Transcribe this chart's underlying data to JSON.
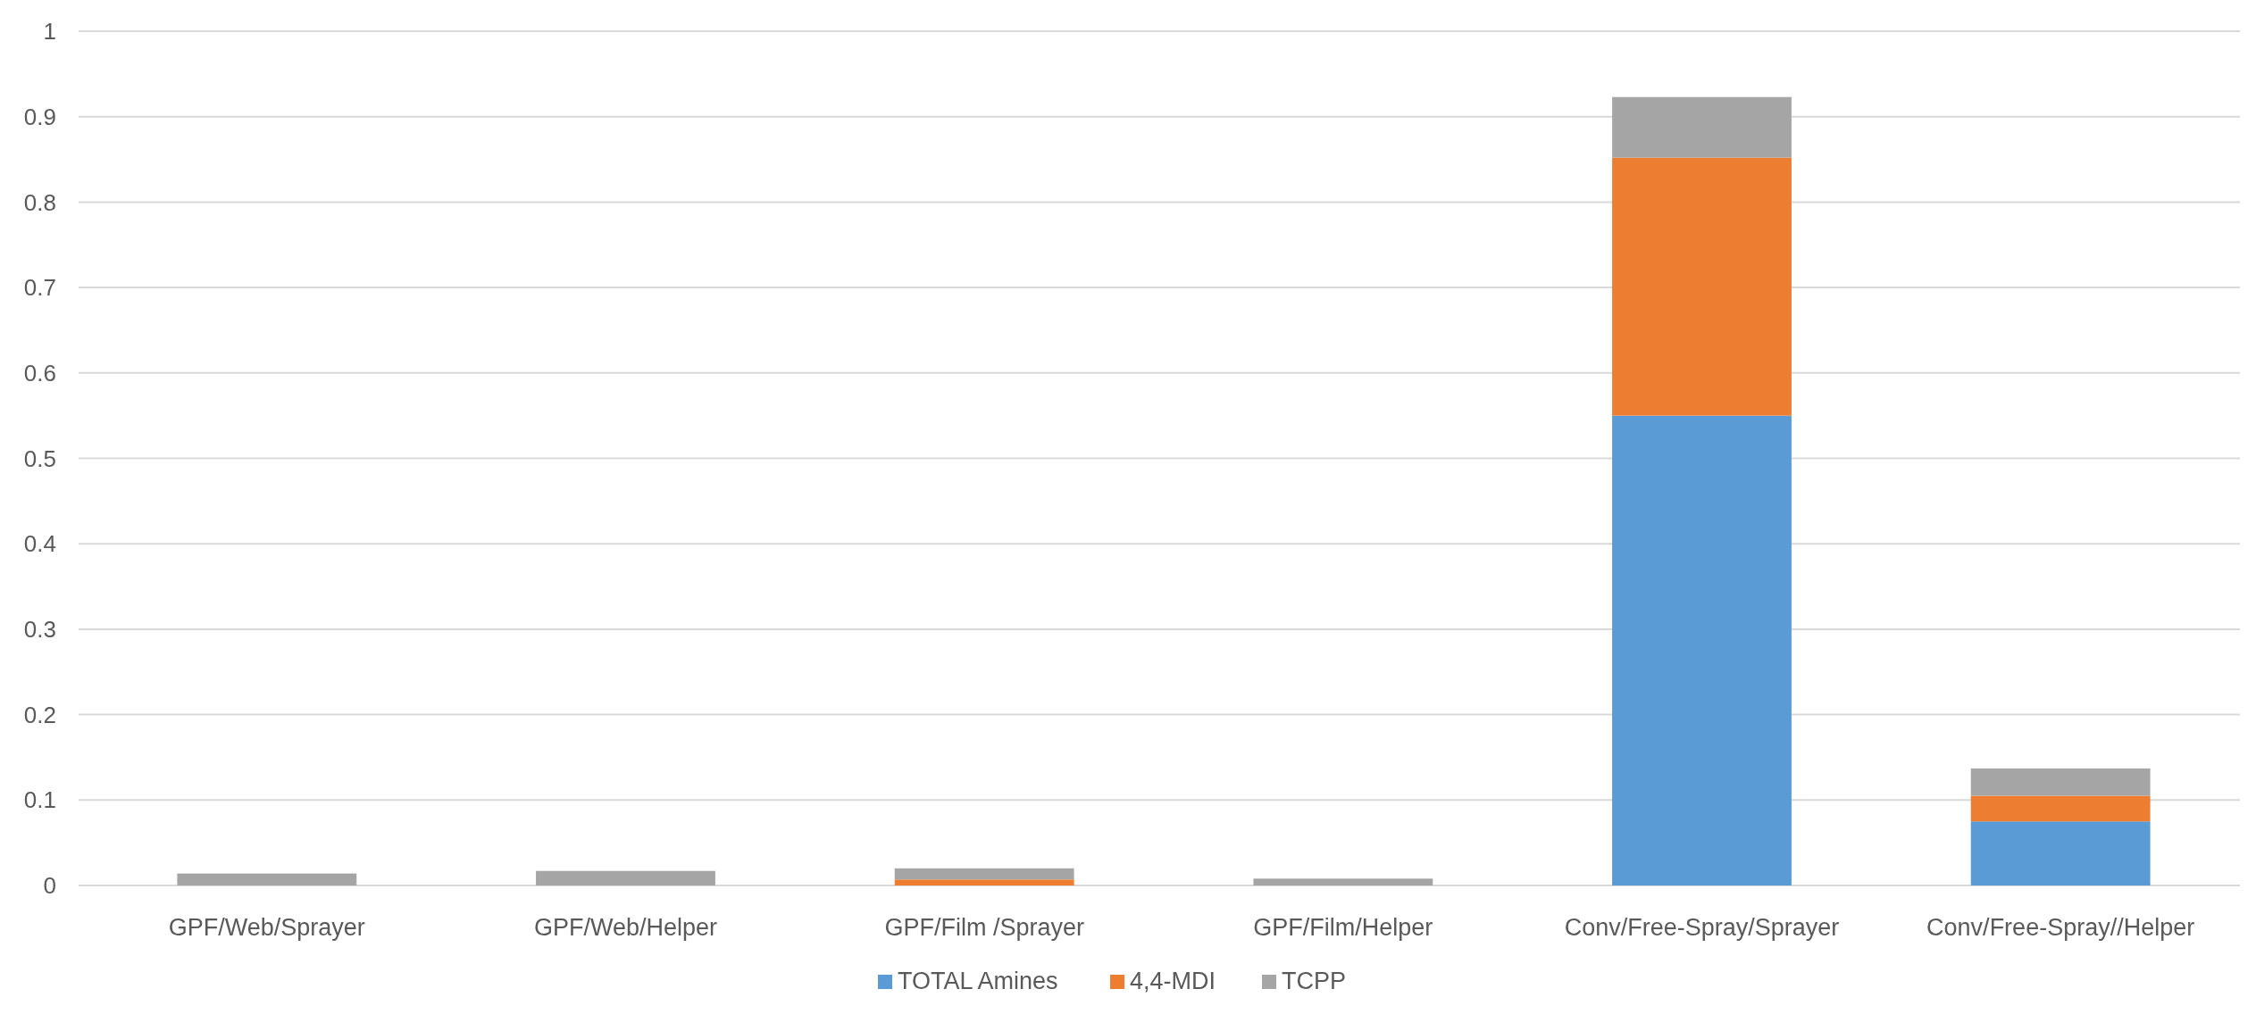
{
  "chart_data": {
    "type": "bar",
    "stacked": true,
    "categories": [
      "GPF/Web/Sprayer",
      "GPF/Web/Helper",
      "GPF/Film /Sprayer",
      "GPF/Film/Helper",
      "Conv/Free-Spray/Sprayer",
      "Conv/Free-Spray//Helper"
    ],
    "series": [
      {
        "name": "TOTAL Amines",
        "color": "#5b9bd5",
        "values": [
          0,
          0,
          0,
          0,
          0.55,
          0.075
        ]
      },
      {
        "name": "4,4-MDI",
        "color": "#ed7d31",
        "values": [
          0,
          0,
          0.007,
          0,
          0.302,
          0.03
        ]
      },
      {
        "name": "TCPP",
        "color": "#a5a5a5",
        "values": [
          0.014,
          0.017,
          0.013,
          0.008,
          0.071,
          0.032
        ]
      }
    ],
    "ylim": [
      0,
      1
    ],
    "yticks": [
      0,
      0.1,
      0.2,
      0.3,
      0.4,
      0.5,
      0.6,
      0.7,
      0.8,
      0.9,
      1
    ],
    "grid": "y",
    "legend": "bottom"
  }
}
